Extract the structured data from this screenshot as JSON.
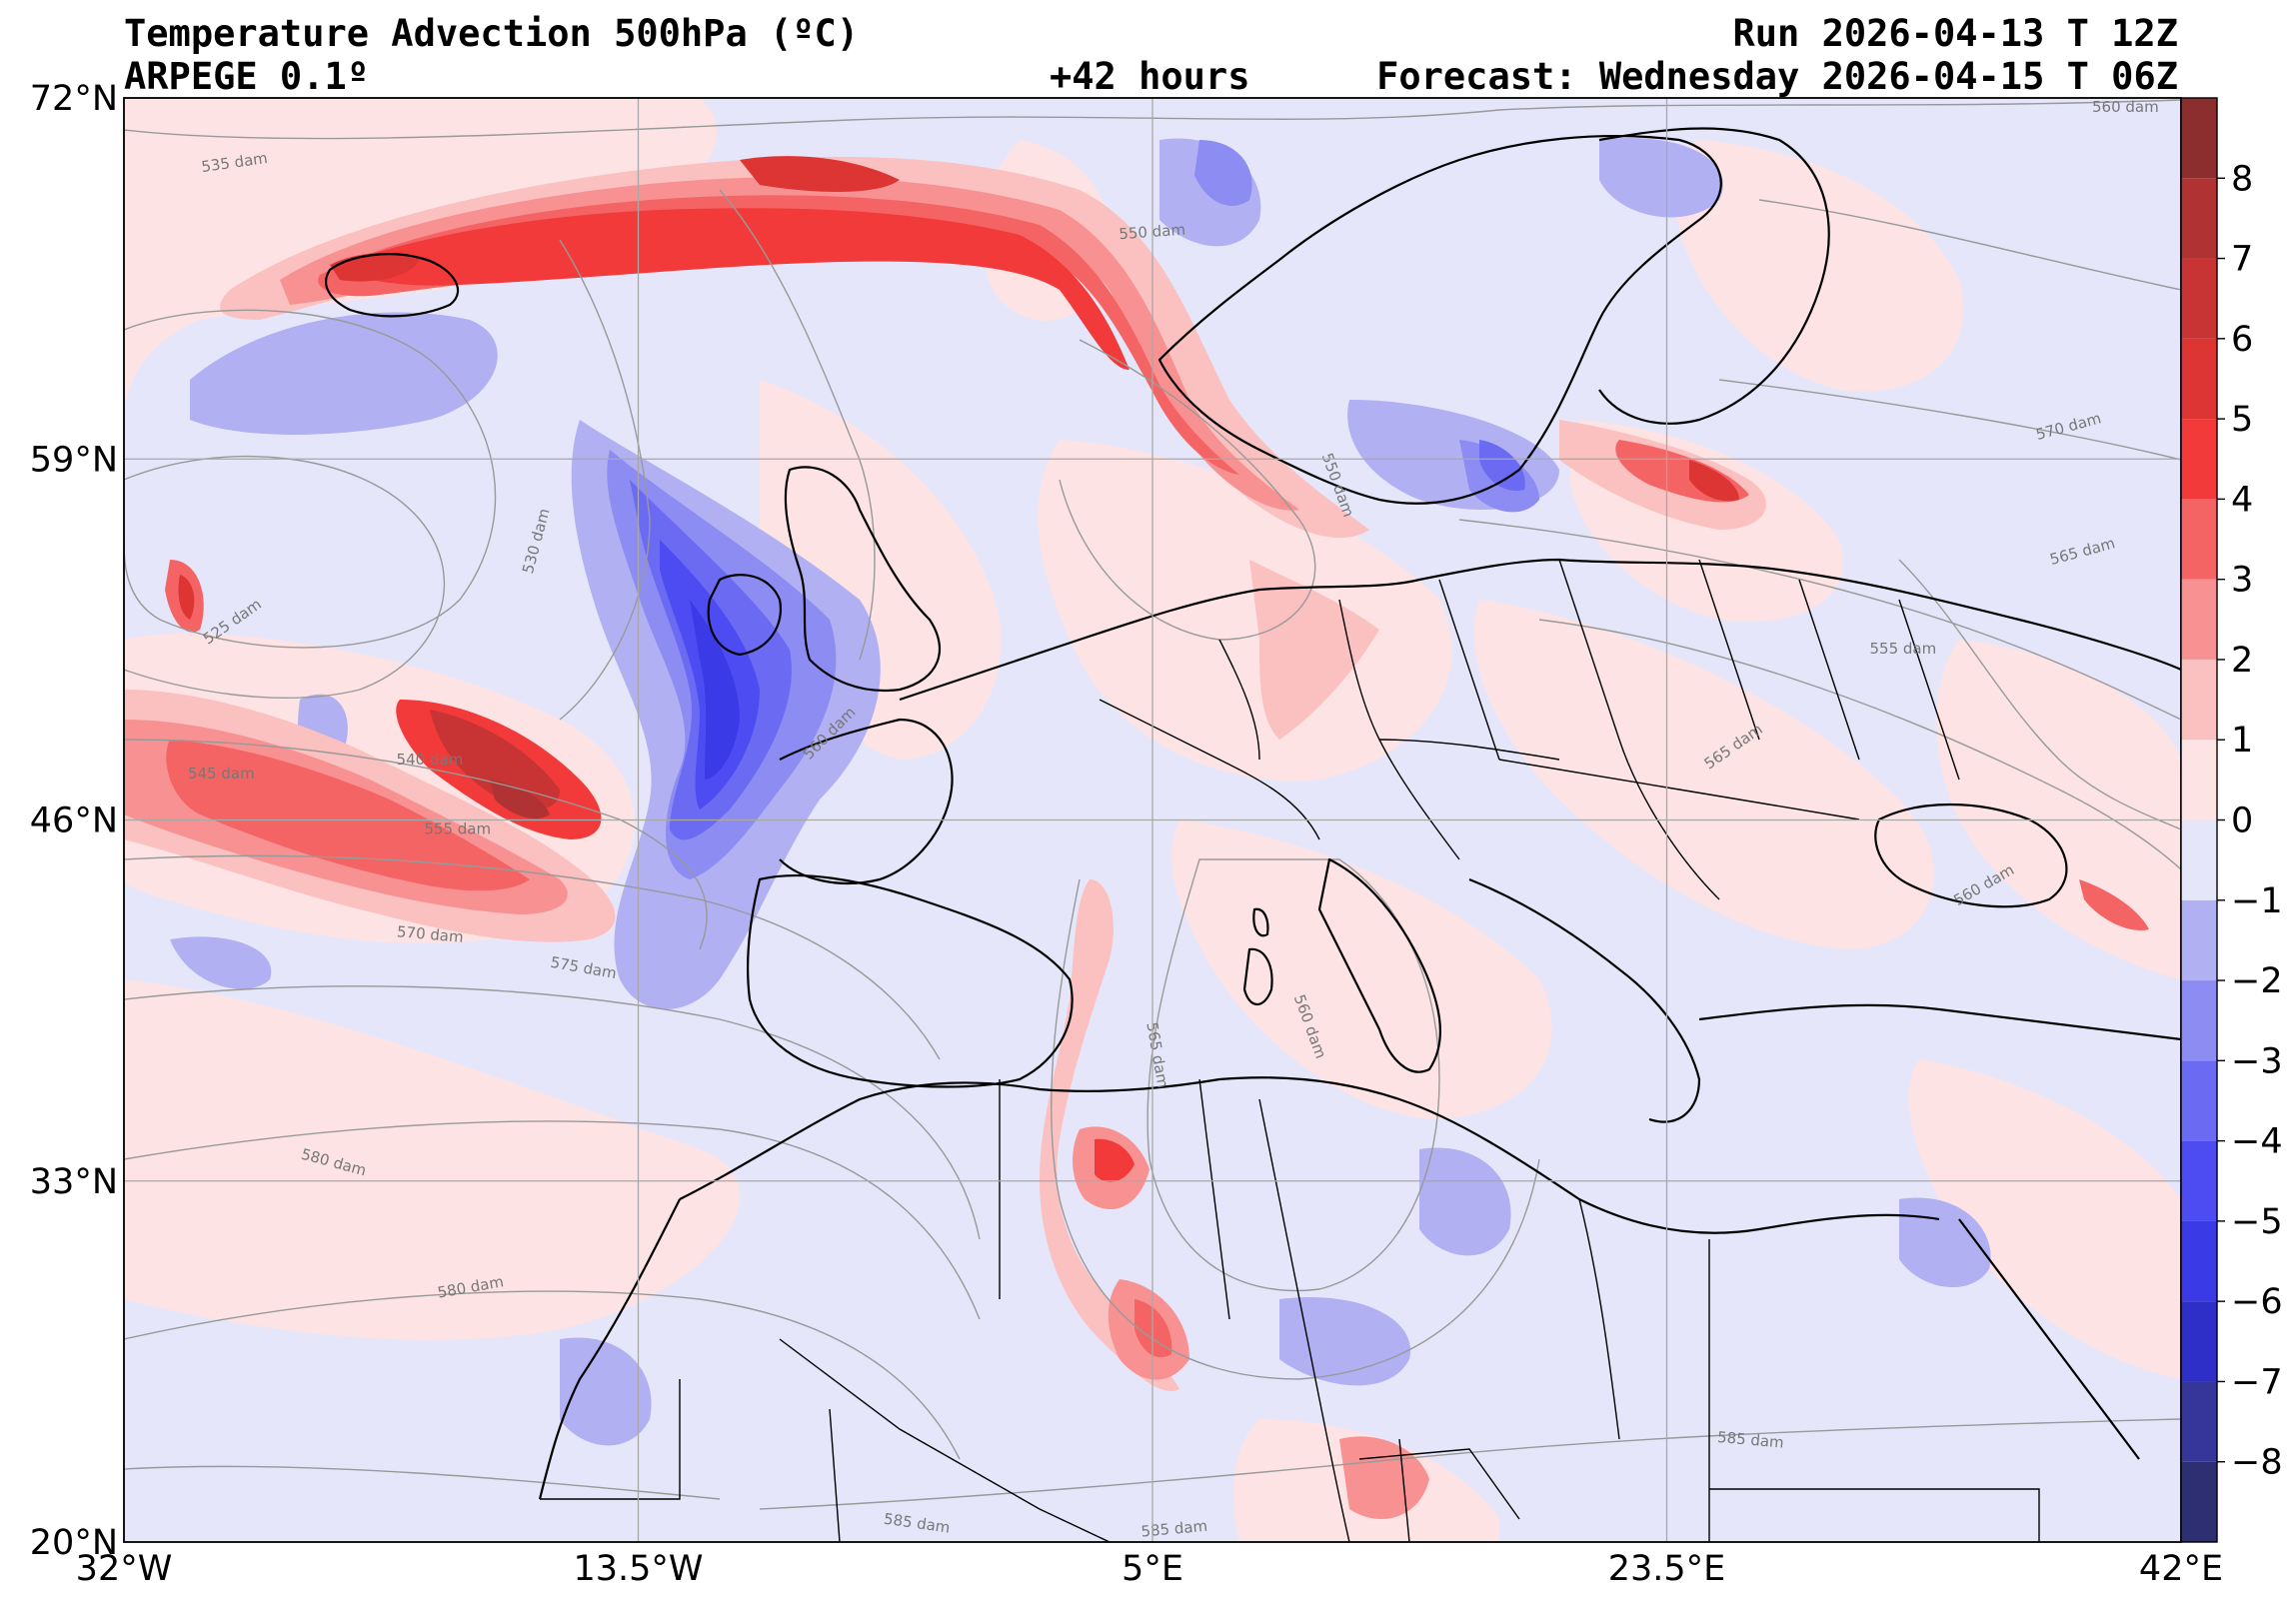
{
  "header": {
    "title": "Temperature Advection  500hPa (ºC)",
    "model": "ARPEGE 0.1º",
    "run": "Run 2026-04-13 T 12Z",
    "lead": "+42 hours",
    "forecast": "Forecast: Wednesday 2026-04-15 T 06Z"
  },
  "map": {
    "lat_range": [
      20,
      72
    ],
    "lon_range": [
      -32,
      42
    ],
    "lat_ticks": [
      {
        "value": 72,
        "label": "72°N"
      },
      {
        "value": 59,
        "label": "59°N"
      },
      {
        "value": 46,
        "label": "46°N"
      },
      {
        "value": 33,
        "label": "33°N"
      },
      {
        "value": 20,
        "label": "20°N"
      }
    ],
    "lon_ticks": [
      {
        "value": -32,
        "label": "32°W"
      },
      {
        "value": -13.5,
        "label": "13.5°W"
      },
      {
        "value": 5,
        "label": "5°E"
      },
      {
        "value": 23.5,
        "label": "23.5°E"
      },
      {
        "value": 42,
        "label": "42°E"
      }
    ],
    "gridlines": true,
    "contour_labels": [
      {
        "text": "535 dam",
        "lon": -28,
        "lat": 69.5,
        "angle": 8
      },
      {
        "text": "550 dam",
        "lon": 5,
        "lat": 67.0,
        "angle": 4
      },
      {
        "text": "560 dam",
        "lon": 40,
        "lat": 71.5,
        "angle": 0
      },
      {
        "text": "530 dam",
        "lon": -17,
        "lat": 56.0,
        "angle": 75
      },
      {
        "text": "525 dam",
        "lon": -28,
        "lat": 53.0,
        "angle": 35
      },
      {
        "text": "540 dam",
        "lon": -21,
        "lat": 48.0,
        "angle": 0
      },
      {
        "text": "545 dam",
        "lon": -28.5,
        "lat": 47.5,
        "angle": 0
      },
      {
        "text": "555 dam",
        "lon": -20,
        "lat": 45.5,
        "angle": 0
      },
      {
        "text": "570 dam",
        "lon": -21,
        "lat": 41.7,
        "angle": -5
      },
      {
        "text": "575 dam",
        "lon": -15.5,
        "lat": 40.5,
        "angle": -10
      },
      {
        "text": "580 dam",
        "lon": -24.5,
        "lat": 33.5,
        "angle": -15
      },
      {
        "text": "580 dam",
        "lon": -19.5,
        "lat": 29.0,
        "angle": 10
      },
      {
        "text": "585 dam",
        "lon": -3.5,
        "lat": 20.5,
        "angle": -8
      },
      {
        "text": "585 dam",
        "lon": 5.8,
        "lat": 20.3,
        "angle": 5
      },
      {
        "text": "585 dam",
        "lon": 26.5,
        "lat": 23.5,
        "angle": -5
      },
      {
        "text": "565 dam",
        "lon": 5,
        "lat": 37.5,
        "angle": -80
      },
      {
        "text": "560 dam",
        "lon": 10.5,
        "lat": 38.5,
        "angle": -70
      },
      {
        "text": "565 dam",
        "lon": 26,
        "lat": 48.5,
        "angle": 35
      },
      {
        "text": "560 dam",
        "lon": 35,
        "lat": 43.5,
        "angle": 30
      },
      {
        "text": "555 dam",
        "lon": 32,
        "lat": 52.0,
        "angle": 0
      },
      {
        "text": "565 dam",
        "lon": 38.5,
        "lat": 55.5,
        "angle": 15
      },
      {
        "text": "570 dam",
        "lon": 38,
        "lat": 60.0,
        "angle": 15
      },
      {
        "text": "550 dam",
        "lon": 11.5,
        "lat": 58.0,
        "angle": -70
      },
      {
        "text": "560 dam",
        "lon": -6.5,
        "lat": 49.0,
        "angle": 45
      }
    ]
  },
  "colorbar": {
    "levels": [
      -9,
      -8,
      -7,
      -6,
      -5,
      -4,
      -3,
      -2,
      -1,
      0,
      1,
      2,
      3,
      4,
      5,
      6,
      7,
      8,
      9
    ],
    "colors": [
      "#2e2e72",
      "#35359a",
      "#2e2ec8",
      "#3a3ae6",
      "#4c4cf2",
      "#6a6af2",
      "#8c8cf2",
      "#b0b0f2",
      "#e6e6fb",
      "#fde3e3",
      "#fbc0c0",
      "#f89292",
      "#f56464",
      "#f23a3a",
      "#dd3434",
      "#c83434",
      "#b03232",
      "#8c2e2e"
    ],
    "tick_labels": [
      "8",
      "7",
      "6",
      "5",
      "4",
      "3",
      "2",
      "1",
      "0",
      "−1",
      "−2",
      "−3",
      "−4",
      "−5",
      "−6",
      "−7",
      "−8"
    ],
    "tick_values": [
      8,
      7,
      6,
      5,
      4,
      3,
      2,
      1,
      0,
      -1,
      -2,
      -3,
      -4,
      -5,
      -6,
      -7,
      -8
    ]
  },
  "colors": {
    "background_field": "#e6e6fb",
    "grid": "#a8a8a8",
    "contour": "#999999",
    "coast": "#000000"
  }
}
